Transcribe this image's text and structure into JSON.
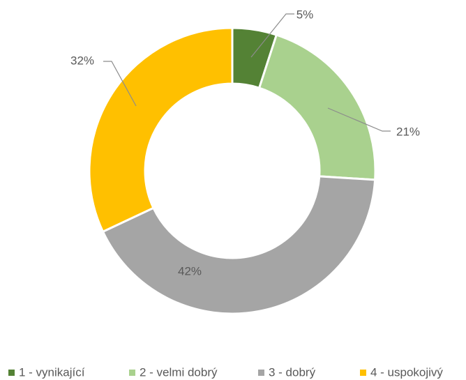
{
  "chart_data": {
    "type": "donut",
    "categories": [
      "1 - vynikající",
      "2 - velmi dobrý",
      "3 - dobrý",
      "4 - uspokojivý"
    ],
    "values": [
      5,
      21,
      42,
      32
    ],
    "value_labels": [
      "5%",
      "21%",
      "42%",
      "32%"
    ],
    "colors": [
      "#548235",
      "#a9d18e",
      "#a5a5a5",
      "#ffc000"
    ],
    "legend": "bottom"
  }
}
